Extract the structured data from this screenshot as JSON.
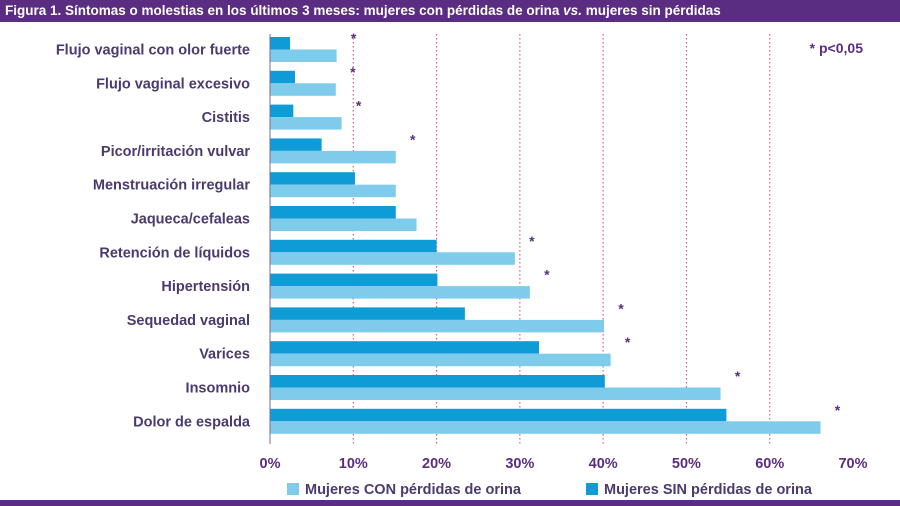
{
  "title": {
    "before": "Figura 1. Síntomas o molestias en los últimos 3 meses: mujeres con pérdidas de orina ",
    "vs": "vs.",
    "after": " mujeres sin pérdidas"
  },
  "significance_note": "* p<0,05",
  "colors": {
    "title_bg": "#5b2d82",
    "label_text": "#4a3a6e",
    "axis_text": "#5b2d82",
    "star": "#5b2d82",
    "gridline": "#d45a9a",
    "con": "#7fcbeb",
    "sin": "#0e9bd6"
  },
  "chart_data": {
    "type": "bar",
    "orientation": "horizontal",
    "categories": [
      "Flujo vaginal con olor fuerte",
      "Flujo vaginal excesivo",
      "Cistitis",
      "Picor/irritación vulvar",
      "Menstruación irregular",
      "Jaqueca/cefaleas",
      "Retención de líquidos",
      "Hipertensión",
      "Sequedad vaginal",
      "Varices",
      "Insomnio",
      "Dolor de espalda"
    ],
    "series": [
      {
        "name": "Mujeres SIN pérdidas de orina",
        "color": "#0e9bd6",
        "values": [
          2.4,
          3.0,
          2.8,
          6.2,
          10.2,
          15.1,
          20.0,
          20.1,
          23.4,
          32.3,
          40.2,
          54.8
        ]
      },
      {
        "name": "Mujeres CON pérdidas de orina",
        "color": "#7fcbeb",
        "values": [
          8.0,
          7.9,
          8.6,
          15.1,
          15.1,
          17.6,
          29.4,
          31.2,
          40.1,
          40.9,
          54.1,
          66.1
        ]
      }
    ],
    "significant": [
      true,
      true,
      true,
      true,
      false,
      false,
      true,
      true,
      true,
      true,
      true,
      true
    ],
    "xlim": [
      0,
      70
    ],
    "x_ticks": [
      "0%",
      "10%",
      "20%",
      "30%",
      "40%",
      "50%",
      "60%",
      "70%"
    ],
    "grid": "vertical dotted",
    "legend": [
      {
        "label": "Mujeres CON pérdidas de orina",
        "color": "#7fcbeb"
      },
      {
        "label": "Mujeres SIN pérdidas de orina",
        "color": "#0e9bd6"
      }
    ],
    "legend_position": "bottom"
  }
}
